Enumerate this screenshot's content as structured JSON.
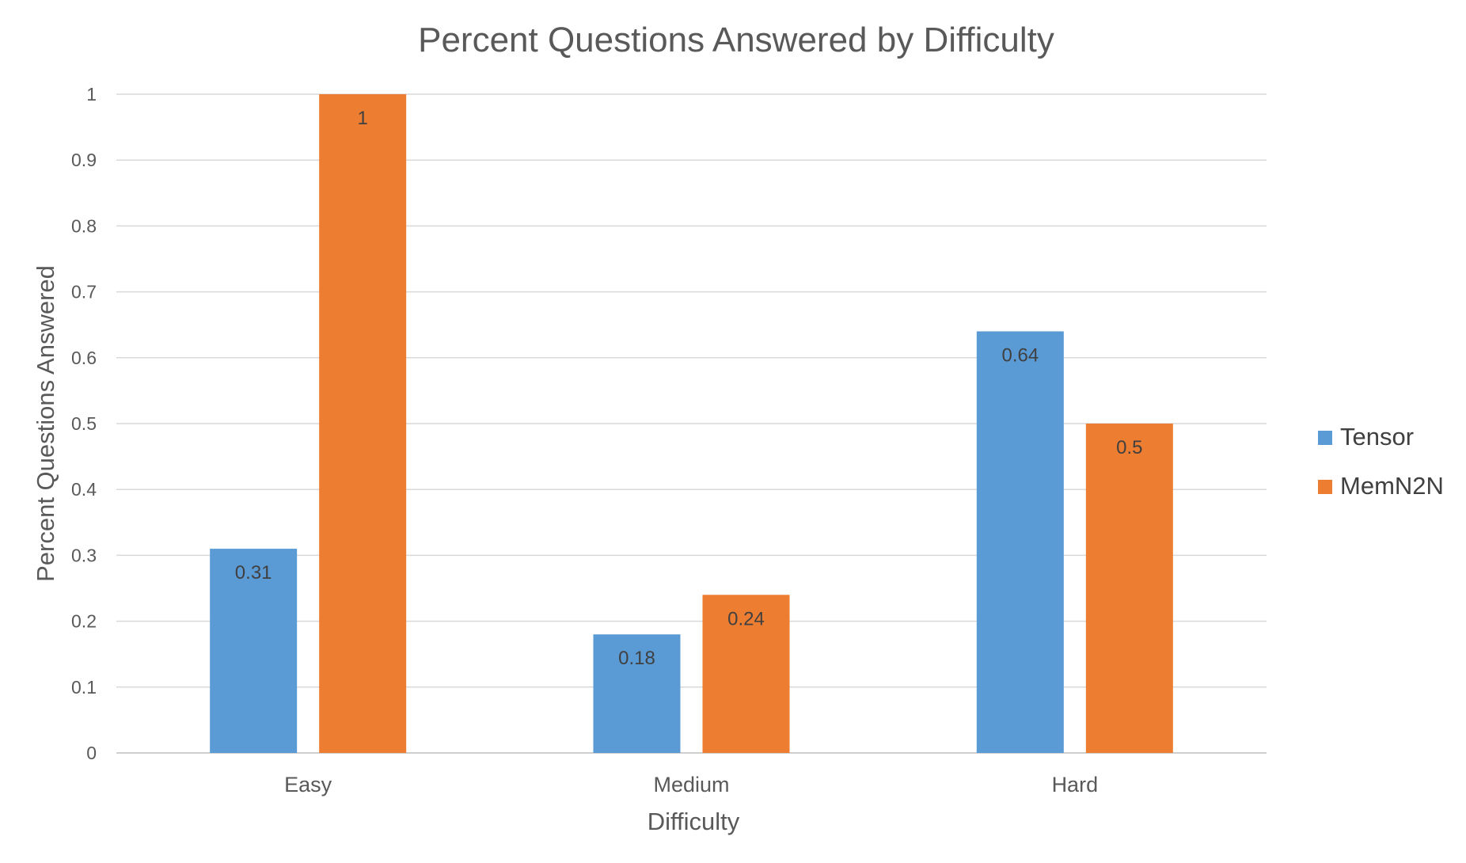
{
  "chart_data": {
    "type": "bar",
    "title": "Percent Questions Answered by Difficulty",
    "xlabel": "Difficulty",
    "ylabel": "Percent Questions  Answered",
    "categories": [
      "Easy",
      "Medium",
      "Hard"
    ],
    "series": [
      {
        "name": "Tensor",
        "color": "#5b9bd5",
        "values": [
          0.31,
          0.18,
          0.64
        ],
        "data_labels": [
          "0.31",
          "0.18",
          "0.64"
        ]
      },
      {
        "name": "MemN2N",
        "color": "#ed7d31",
        "values": [
          1,
          0.24,
          0.5
        ],
        "data_labels": [
          "1",
          "0.24",
          "0.5"
        ]
      }
    ],
    "ylim": [
      0,
      1
    ],
    "yticks": [
      "0",
      "0.1",
      "0.2",
      "0.3",
      "0.4",
      "0.5",
      "0.6",
      "0.7",
      "0.8",
      "0.9",
      "1"
    ],
    "grid": true,
    "legend_position": "right"
  }
}
